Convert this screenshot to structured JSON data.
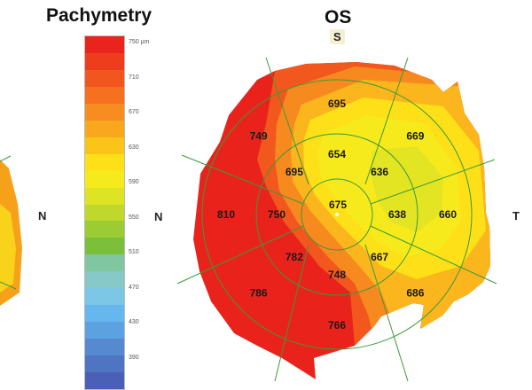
{
  "header": {
    "left_title": "Pachymetry",
    "right_title": "OS"
  },
  "orientation": {
    "superior": "S",
    "nasal_left_map": "N",
    "nasal": "N",
    "temporal": "T"
  },
  "scale": {
    "unit_label": "750 µm",
    "ticks": [
      "750 µm",
      "710",
      "670",
      "630",
      "590",
      "550",
      "510",
      "470",
      "430",
      "390"
    ],
    "colors": [
      "#e8241c",
      "#ee3d1c",
      "#f2561f",
      "#f5711f",
      "#f78c20",
      "#f9a81d",
      "#fbc419",
      "#fde017",
      "#f5ea1c",
      "#dde424",
      "#c0d82c",
      "#9ccc34",
      "#7cbf3a",
      "#80c6a0",
      "#86c9c8",
      "#7cc6e6",
      "#66b7ee",
      "#5ca1e0",
      "#5589d0",
      "#4f74c2",
      "#4a5fb6"
    ]
  },
  "map": {
    "center": "675",
    "inner_ring": [
      "654",
      "636",
      "638",
      "667",
      "748",
      "782",
      "750",
      "695"
    ],
    "outer_ring": [
      "695",
      "669",
      "660",
      "686",
      "766",
      "786",
      "810",
      "749"
    ]
  }
}
